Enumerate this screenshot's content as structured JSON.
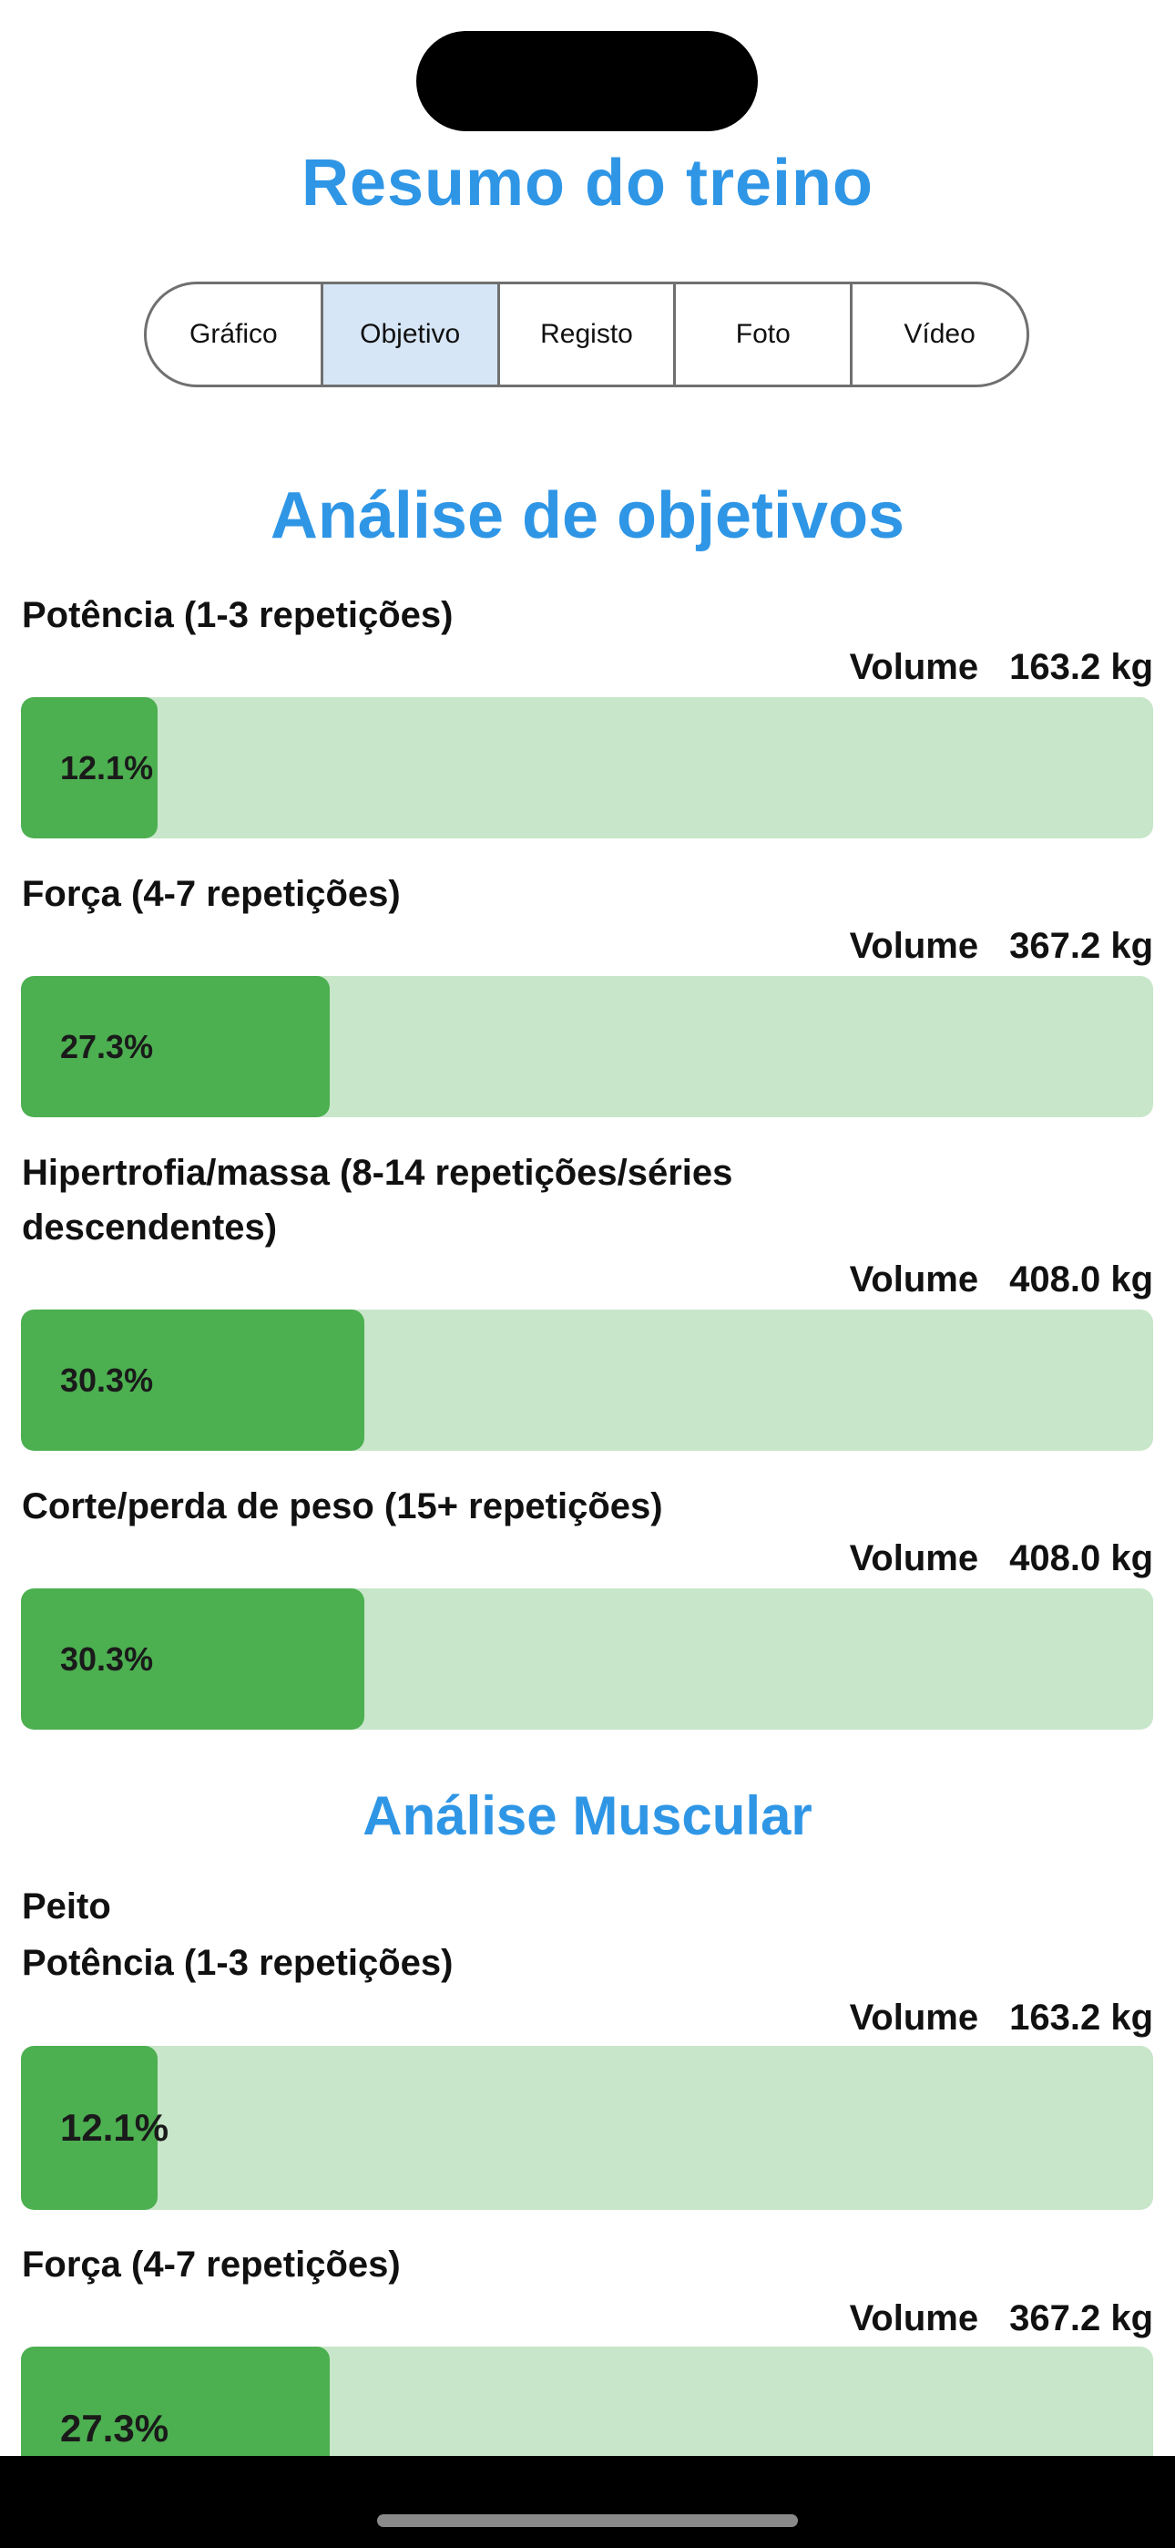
{
  "header": {
    "title": "Resumo do treino"
  },
  "tabs": [
    {
      "label": "Gráfico",
      "selected": false
    },
    {
      "label": "Objetivo",
      "selected": true
    },
    {
      "label": "Registo",
      "selected": false
    },
    {
      "label": "Foto",
      "selected": false
    },
    {
      "label": "Vídeo",
      "selected": false
    }
  ],
  "goal_analysis": {
    "title": "Análise de objetivos",
    "volume_label": "Volume",
    "items": [
      {
        "label": "Potência (1-3 repetições)",
        "volume": "163.2 kg",
        "percent_label": "12.1%",
        "percent": 12.1
      },
      {
        "label": "Força (4-7 repetições)",
        "volume": "367.2 kg",
        "percent_label": "27.3%",
        "percent": 27.3
      },
      {
        "label": "Hipertrofia/massa (8-14 repetições/séries descendentes)",
        "volume": "408.0 kg",
        "percent_label": "30.3%",
        "percent": 30.3
      },
      {
        "label": "Corte/perda de peso (15+ repetições)",
        "volume": "408.0 kg",
        "percent_label": "30.3%",
        "percent": 30.3
      }
    ]
  },
  "muscle_analysis": {
    "title": "Análise Muscular",
    "muscle": "Peito",
    "volume_label": "Volume",
    "items": [
      {
        "label": "Potência (1-3 repetições)",
        "volume": "163.2 kg",
        "percent_label": "12.1%",
        "percent": 12.1
      },
      {
        "label": "Força (4-7 repetições)",
        "volume": "367.2 kg",
        "percent_label": "27.3%",
        "percent": 27.3
      }
    ]
  },
  "colors": {
    "accent": "#2f96e6",
    "bar_fill": "#4caf50",
    "bar_track": "#c8e6c9",
    "segment_selected": "#d6e6f7"
  }
}
